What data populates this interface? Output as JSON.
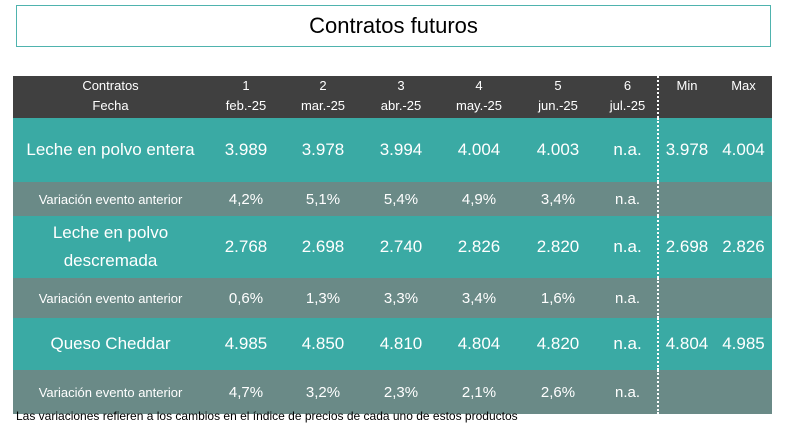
{
  "title": "Contratos futuros",
  "header": {
    "col0_line1": "Contratos",
    "col0_line2": "Fecha",
    "contracts": [
      {
        "num": "1",
        "date": "feb.-25"
      },
      {
        "num": "2",
        "date": "mar.-25"
      },
      {
        "num": "3",
        "date": "abr.-25"
      },
      {
        "num": "4",
        "date": "may.-25"
      },
      {
        "num": "5",
        "date": "jun.-25"
      },
      {
        "num": "6",
        "date": "jul.-25"
      }
    ],
    "min_label": "Min",
    "max_label": "Max"
  },
  "rows": [
    {
      "name": "Leche en polvo entera",
      "values": [
        "3.989",
        "3.978",
        "3.994",
        "4.004",
        "4.003",
        "n.a."
      ],
      "min": "3.978",
      "max": "4.004"
    },
    {
      "name": "Variación evento anterior",
      "values": [
        "4,2%",
        "5,1%",
        "5,4%",
        "4,9%",
        "3,4%",
        "n.a."
      ]
    },
    {
      "name": "Leche en polvo descremada",
      "values": [
        "2.768",
        "2.698",
        "2.740",
        "2.826",
        "2.820",
        "n.a."
      ],
      "min": "2.698",
      "max": "2.826"
    },
    {
      "name": "Variación evento anterior",
      "values": [
        "0,6%",
        "1,3%",
        "3,3%",
        "3,4%",
        "1,6%",
        "n.a."
      ]
    },
    {
      "name": "Queso Cheddar",
      "values": [
        "4.985",
        "4.850",
        "4.810",
        "4.804",
        "4.820",
        "n.a."
      ],
      "min": "4.804",
      "max": "4.985"
    },
    {
      "name": "Variación evento anterior",
      "values": [
        "4,7%",
        "3,2%",
        "2,3%",
        "2,1%",
        "2,6%",
        "n.a."
      ]
    }
  ],
  "footnote": "Las variaciones refieren a los cambios en el índice de precios de cada uno de estos productos"
}
